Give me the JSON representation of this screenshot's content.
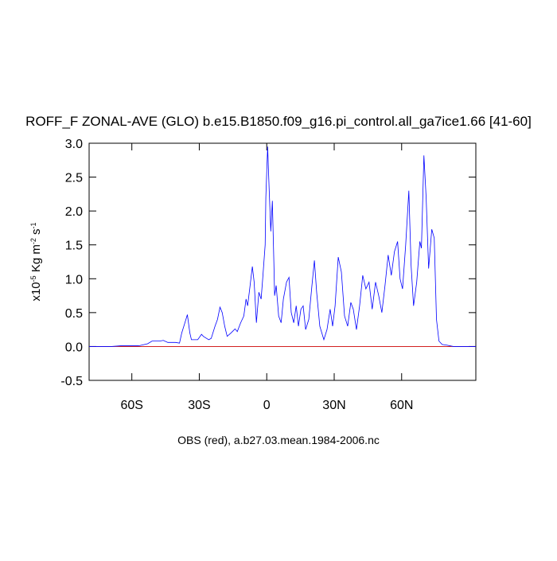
{
  "chart_data": {
    "type": "line",
    "title": "ROFF_F ZONAL-AVE (GLO) b.e15.B1850.f09_g16.pi_control.all_ga7ice1.66 [41-60]",
    "caption": "OBS (red), a.b27.03.mean.1984-2006.nc",
    "ylabel": [
      {
        "text": "x10",
        "sup": false
      },
      {
        "text": "-5",
        "sup": true
      },
      {
        "text": " Kg m",
        "sup": false
      },
      {
        "text": "-2",
        "sup": true
      },
      {
        "text": " s",
        "sup": false
      },
      {
        "text": "-1",
        "sup": true
      }
    ],
    "xlim": [
      -79,
      93
    ],
    "ylim": [
      -0.5,
      3
    ],
    "xticks": [
      {
        "value": -60,
        "label": "60S"
      },
      {
        "value": -30,
        "label": "30S"
      },
      0,
      {
        "value": 30,
        "label": "30N"
      },
      {
        "value": 60,
        "label": "60N"
      }
    ],
    "yticks": [
      {
        "value": -0.5,
        "label": "-0.5"
      },
      {
        "value": 0,
        "label": "0.0"
      },
      0.5,
      {
        "value": 1,
        "label": "1.0"
      },
      1.5,
      {
        "value": 2,
        "label": "2.0"
      },
      2.5,
      {
        "value": 3,
        "label": "3.0"
      }
    ],
    "series": [
      {
        "color": "#0000ff",
        "x": [
          -79,
          -69,
          -65,
          -58,
          -57,
          -53,
          -51,
          -47.6,
          -46,
          -44,
          -40.6,
          -38.8,
          -37.8,
          -36.4,
          -35.3,
          -34.2,
          -33.5,
          -30.7,
          -29,
          -28.2,
          -25.8,
          -24.7,
          -23,
          -21.9,
          -20.8,
          -19.8,
          -18.7,
          -17.6,
          -15.9,
          -14.1,
          -13.1,
          -11.6,
          -10.2,
          -9.2,
          -8.5,
          -7.4,
          -6.4,
          -5.6,
          -4.6,
          -3.5,
          -2.5,
          -1.8,
          -0.7,
          -0.4,
          0.4,
          1.1,
          1.8,
          2.5,
          3.2,
          3.5,
          4.2,
          5.3,
          6.4,
          7.4,
          8.8,
          9.9,
          10.9,
          12,
          13.1,
          14.1,
          15.2,
          16.2,
          17.3,
          18.7,
          20.1,
          21.2,
          22.2,
          23.6,
          25.4,
          26.8,
          28.2,
          29.3,
          30.4,
          31.8,
          33.2,
          34.6,
          36,
          37.4,
          38.5,
          39.9,
          41.3,
          42.7,
          44.1,
          45.5,
          46.9,
          48.4,
          49.8,
          51.2,
          52.6,
          54,
          55.4,
          56.8,
          58.2,
          59.3,
          60.4,
          61.8,
          63.2,
          64.2,
          65.3,
          66.7,
          68.1,
          68.8,
          69.9,
          70.9,
          72,
          73.4,
          74.5,
          75.5,
          76.6,
          78,
          80.1,
          83,
          93
        ],
        "values": [
          0,
          0,
          0.01,
          0.01,
          0.01,
          0.04,
          0.08,
          0.08,
          0.09,
          0.06,
          0.06,
          0.05,
          0.2,
          0.35,
          0.47,
          0.2,
          0.1,
          0.1,
          0.18,
          0.15,
          0.1,
          0.12,
          0.3,
          0.4,
          0.58,
          0.5,
          0.3,
          0.15,
          0.2,
          0.26,
          0.22,
          0.35,
          0.45,
          0.7,
          0.6,
          0.9,
          1.18,
          0.95,
          0.35,
          0.8,
          0.7,
          1.0,
          1.5,
          2.2,
          2.95,
          2.3,
          1.7,
          2.15,
          1.2,
          0.75,
          0.9,
          0.45,
          0.35,
          0.7,
          0.95,
          1.02,
          0.5,
          0.35,
          0.6,
          0.3,
          0.55,
          0.6,
          0.25,
          0.4,
          0.9,
          1.27,
          0.8,
          0.3,
          0.1,
          0.25,
          0.55,
          0.3,
          0.6,
          1.32,
          1.1,
          0.45,
          0.3,
          0.65,
          0.55,
          0.25,
          0.6,
          1.05,
          0.85,
          0.95,
          0.55,
          0.95,
          0.75,
          0.5,
          0.9,
          1.35,
          1.05,
          1.4,
          1.55,
          1.0,
          0.85,
          1.5,
          2.3,
          1.2,
          0.6,
          0.95,
          1.55,
          1.45,
          2.82,
          2.2,
          1.15,
          1.73,
          1.6,
          0.4,
          0.08,
          0.03,
          0.02,
          0,
          0
        ]
      },
      {
        "color": "#cc0000",
        "x": [
          -79,
          93
        ],
        "values": [
          0,
          0
        ]
      }
    ]
  }
}
